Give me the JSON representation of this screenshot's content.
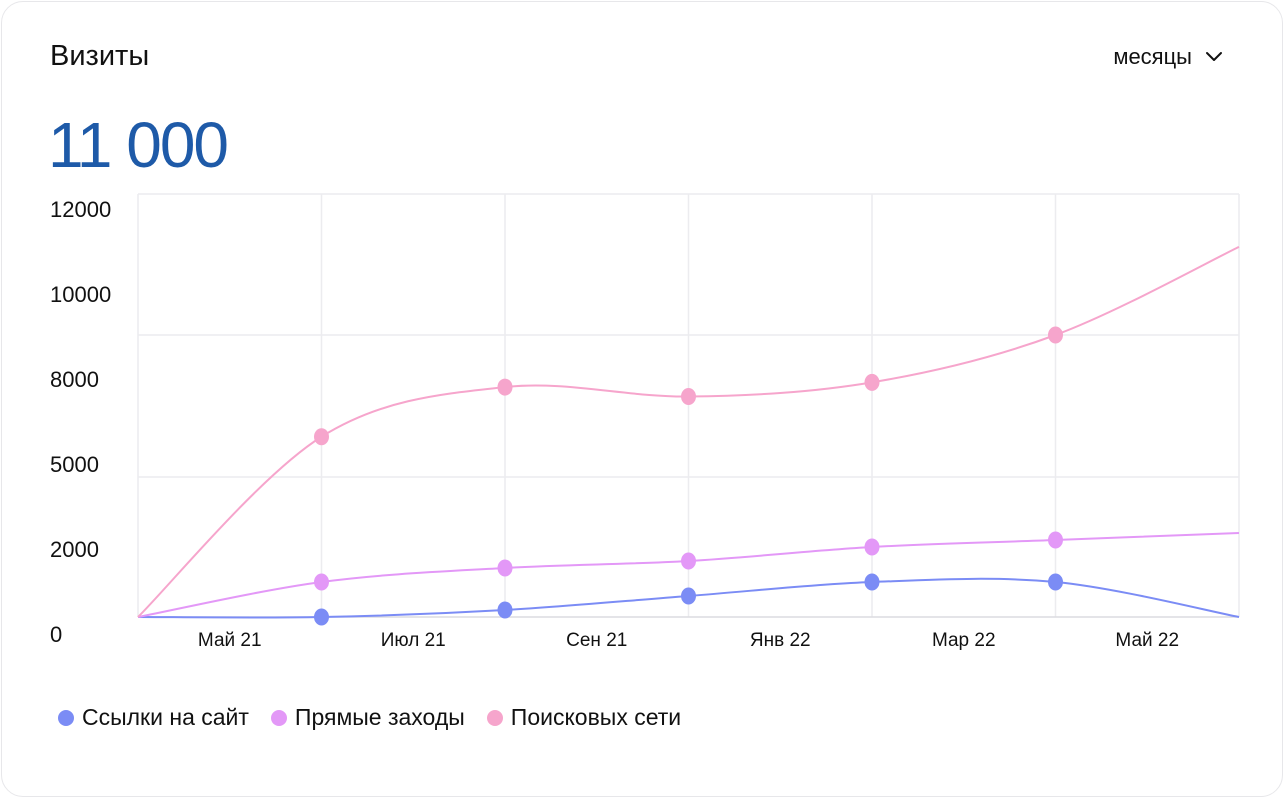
{
  "header": {
    "title": "Визиты",
    "period_label": "месяцы",
    "period_icon": "chevron-down-icon",
    "total": "11 000"
  },
  "chart_data": {
    "type": "line",
    "title": "",
    "xlabel": "",
    "ylabel": "",
    "y_tick_labels": [
      "12000",
      "10000",
      "8000",
      "5000",
      "2000",
      "0"
    ],
    "x_tick_labels": [
      "Май 21",
      "Июл 21",
      "Сен 21",
      "Янв 22",
      "Мар 22",
      "Май 22"
    ],
    "ylim": [
      0,
      12000
    ],
    "grid": true,
    "legend_position": "bottom-left",
    "series": [
      {
        "name": "Ссылки на сайт",
        "color": "#7b8cf5",
        "values": [
          0,
          0,
          100,
          300,
          500,
          500,
          0
        ],
        "markers": [
          false,
          true,
          true,
          true,
          true,
          true,
          false
        ]
      },
      {
        "name": "Прямые заходы",
        "color": "#e398f7",
        "values": [
          0,
          500,
          700,
          800,
          1000,
          1100,
          1200
        ],
        "markers": [
          false,
          true,
          true,
          true,
          true,
          true,
          false
        ]
      },
      {
        "name": "Поисковых сети",
        "color": "#f6a5cc",
        "values": [
          0,
          3700,
          5800,
          5400,
          6000,
          8000,
          10500
        ],
        "markers": [
          false,
          true,
          true,
          true,
          true,
          true,
          false
        ]
      }
    ]
  }
}
